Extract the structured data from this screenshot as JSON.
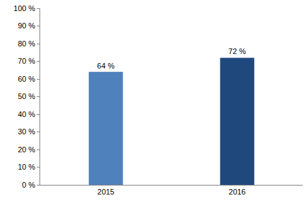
{
  "chart_data": {
    "type": "bar",
    "categories": [
      "2015",
      "2016"
    ],
    "values": [
      64,
      72
    ],
    "value_labels": [
      "64 %",
      "72 %"
    ],
    "colors": [
      "#4f81bd",
      "#1f497d"
    ],
    "data_labels": true,
    "grid": false,
    "ylim": [
      0,
      100
    ],
    "yticks": [
      {
        "value": 0,
        "label": "0 %"
      },
      {
        "value": 10,
        "label": "10 %"
      },
      {
        "value": 20,
        "label": "20 %"
      },
      {
        "value": 30,
        "label": "30 %"
      },
      {
        "value": 40,
        "label": "40 %"
      },
      {
        "value": 50,
        "label": "50 %"
      },
      {
        "value": 60,
        "label": "60 %"
      },
      {
        "value": 70,
        "label": "70 %"
      },
      {
        "value": 80,
        "label": "80 %"
      },
      {
        "value": 90,
        "label": "90 %"
      },
      {
        "value": 100,
        "label": "100 %"
      }
    ]
  }
}
